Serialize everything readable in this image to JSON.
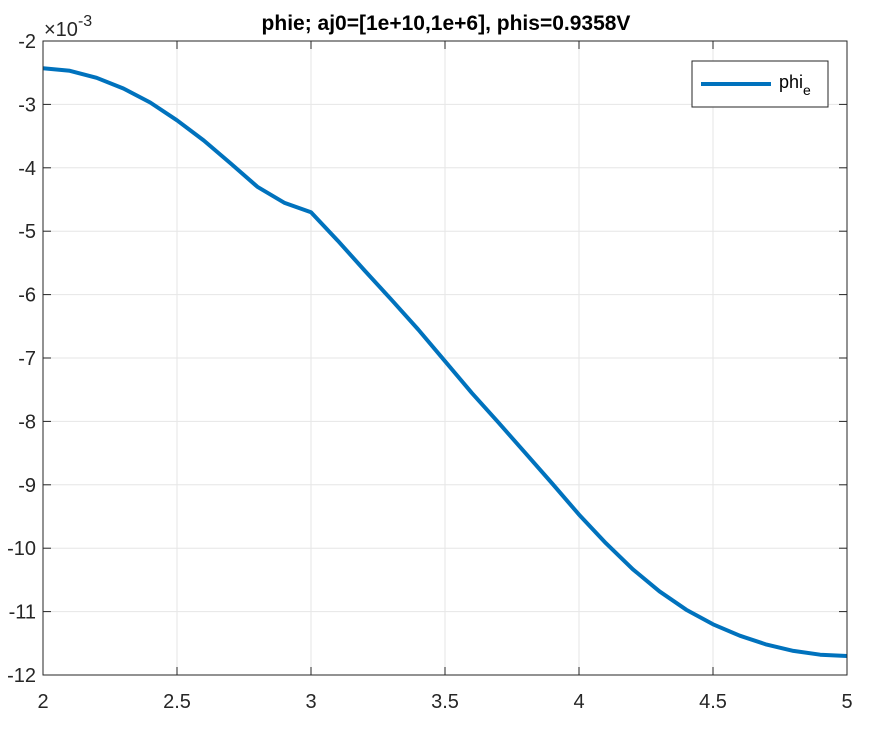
{
  "chart_data": {
    "type": "line",
    "title": "phie; aj0=[1e+10,1e+6], phis=0.9358V",
    "xlabel": "",
    "ylabel": "",
    "xlim": [
      2,
      5
    ],
    "ylim": [
      -12,
      -2
    ],
    "y_exponent_label": "×10",
    "y_exponent_power": "-3",
    "x_ticks": [
      2,
      2.5,
      3,
      3.5,
      4,
      4.5,
      5
    ],
    "x_tick_labels": [
      "2",
      "2.5",
      "3",
      "3.5",
      "4",
      "4.5",
      "5"
    ],
    "y_ticks": [
      -12,
      -11,
      -10,
      -9,
      -8,
      -7,
      -6,
      -5,
      -4,
      -3,
      -2
    ],
    "y_tick_labels": [
      "-12",
      "-11",
      "-10",
      "-9",
      "-8",
      "-7",
      "-6",
      "-5",
      "-4",
      "-3",
      "-2"
    ],
    "grid": true,
    "legend_position": "top-right",
    "colors": {
      "series": "#0072BD",
      "grid": "#e6e6e6",
      "axes": "#262626"
    },
    "series": [
      {
        "name": "phi",
        "name_subscript": "e",
        "x": [
          2.0,
          2.1,
          2.2,
          2.3,
          2.4,
          2.5,
          2.6,
          2.7,
          2.8,
          2.9,
          3.0,
          3.1,
          3.2,
          3.3,
          3.4,
          3.5,
          3.6,
          3.7,
          3.8,
          3.9,
          4.0,
          4.1,
          4.2,
          4.3,
          4.4,
          4.5,
          4.6,
          4.7,
          4.8,
          4.9,
          5.0
        ],
        "y": [
          -2.43,
          -2.47,
          -2.58,
          -2.75,
          -2.97,
          -3.25,
          -3.57,
          -3.93,
          -4.3,
          -4.55,
          -4.7,
          -5.15,
          -5.62,
          -6.08,
          -6.55,
          -7.05,
          -7.55,
          -8.02,
          -8.5,
          -8.98,
          -9.47,
          -9.92,
          -10.33,
          -10.68,
          -10.97,
          -11.2,
          -11.38,
          -11.52,
          -11.62,
          -11.68,
          -11.7
        ]
      }
    ]
  }
}
